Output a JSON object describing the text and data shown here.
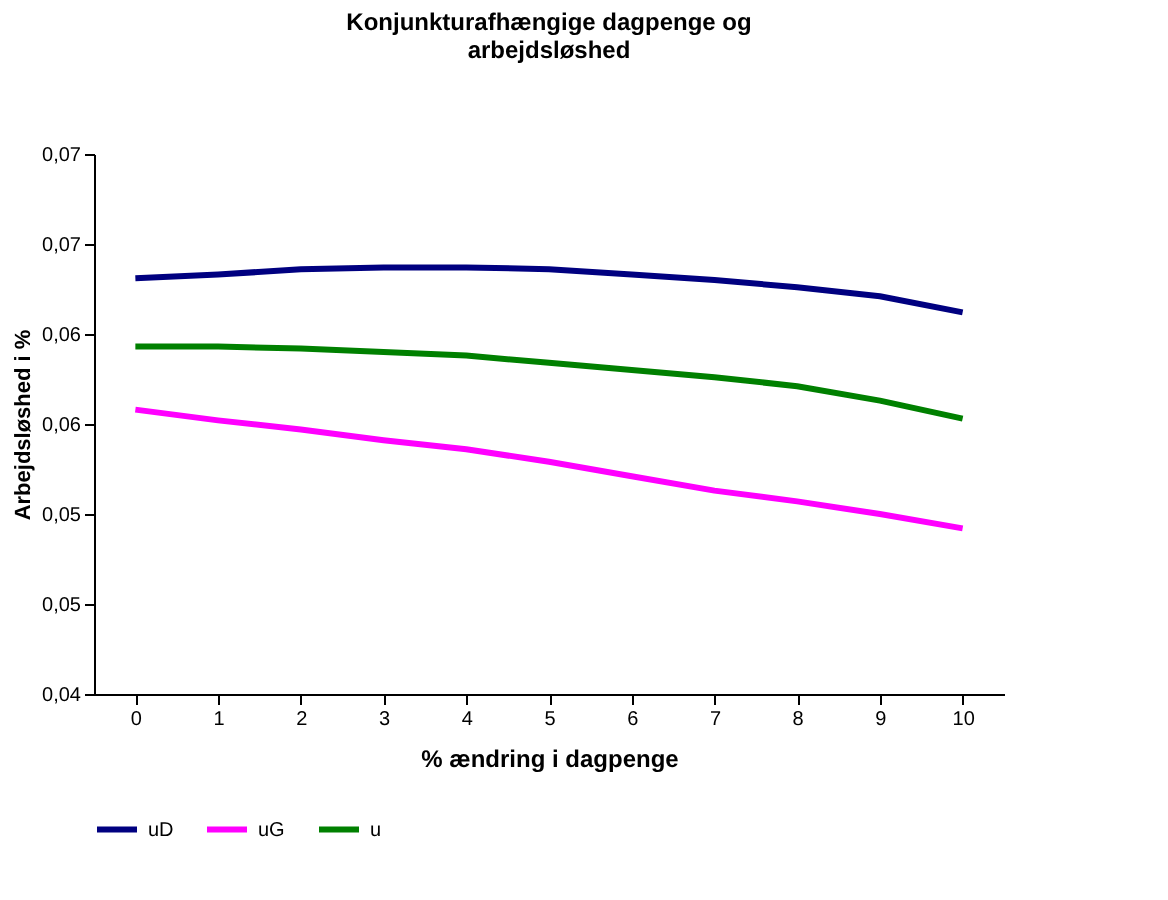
{
  "chart_data": {
    "type": "line",
    "title": [
      "Konjunkturafhængige dagpenge og",
      "arbejdsløshed"
    ],
    "xlabel": "% ændring i dagpenge",
    "ylabel": "Arbejdsløshed i %",
    "categories": [
      "0",
      "1",
      "2",
      "3",
      "4",
      "5",
      "6",
      "7",
      "8",
      "9",
      "10"
    ],
    "series": [
      {
        "name": "uD",
        "color": "#000080",
        "values": [
          0.0631,
          0.0633,
          0.0636,
          0.0637,
          0.0637,
          0.0636,
          0.0633,
          0.063,
          0.0626,
          0.0621,
          0.0612
        ]
      },
      {
        "name": "uG",
        "color": "#ff00ff",
        "values": [
          0.0558,
          0.0552,
          0.0547,
          0.0541,
          0.0536,
          0.0529,
          0.0521,
          0.0513,
          0.0507,
          0.05,
          0.0492
        ]
      },
      {
        "name": "u",
        "color": "#008000",
        "values": [
          0.0593,
          0.0593,
          0.0592,
          0.059,
          0.0588,
          0.0584,
          0.058,
          0.0576,
          0.0571,
          0.0563,
          0.0553
        ]
      }
    ],
    "ylim": [
      0.04,
      0.07
    ],
    "yticks": [
      {
        "value": 0.04,
        "label": "0,04"
      },
      {
        "value": 0.045,
        "label": "0,05"
      },
      {
        "value": 0.05,
        "label": "0,05"
      },
      {
        "value": 0.055,
        "label": "0,06"
      },
      {
        "value": 0.06,
        "label": "0,06"
      },
      {
        "value": 0.065,
        "label": "0,07"
      },
      {
        "value": 0.07,
        "label": "0,07"
      }
    ],
    "grid": false,
    "legend": "bottom",
    "marker": "none",
    "line_style": "solid"
  }
}
